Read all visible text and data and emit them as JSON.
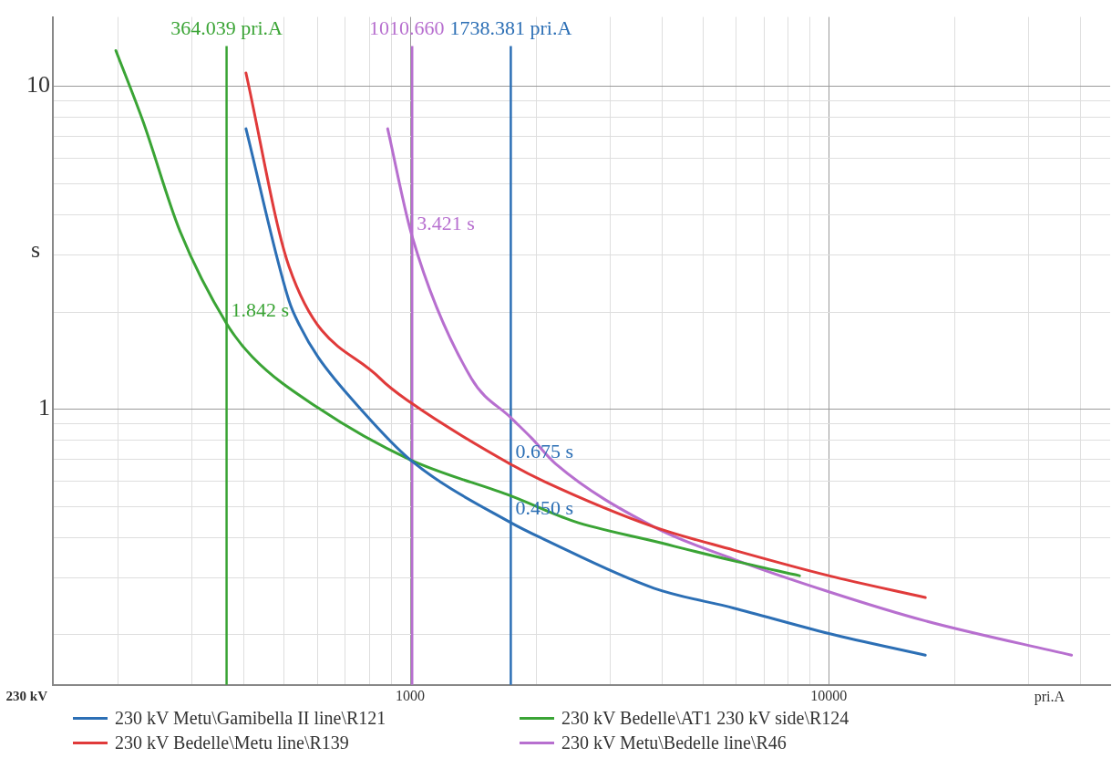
{
  "chart_data": {
    "type": "line",
    "xlabel": "pri.A",
    "ylabel": "s",
    "log": "xy",
    "grid": true,
    "legend": "bottom",
    "xlim": [
      140,
      47000
    ],
    "ylim": [
      0.14,
      16.4
    ],
    "xticks": [
      {
        "value": 200,
        "label": null
      },
      {
        "value": 300,
        "label": null
      },
      {
        "value": 400,
        "label": null
      },
      {
        "value": 500,
        "label": null
      },
      {
        "value": 600,
        "label": null
      },
      {
        "value": 700,
        "label": null
      },
      {
        "value": 800,
        "label": null
      },
      {
        "value": 900,
        "label": null
      },
      1000,
      {
        "value": 2000,
        "label": null
      },
      {
        "value": 3000,
        "label": null
      },
      {
        "value": 4000,
        "label": null
      },
      {
        "value": 5000,
        "label": null
      },
      {
        "value": 6000,
        "label": null
      },
      {
        "value": 7000,
        "label": null
      },
      {
        "value": 8000,
        "label": null
      },
      {
        "value": 9000,
        "label": null
      },
      10000,
      {
        "value": 20000,
        "label": null
      },
      {
        "value": 30000,
        "label": null
      },
      {
        "value": 40000,
        "label": null
      }
    ],
    "yticks": [
      {
        "value": 0.2,
        "label": null
      },
      {
        "value": 0.3,
        "label": null
      },
      {
        "value": 0.4,
        "label": null
      },
      {
        "value": 0.5,
        "label": null
      },
      {
        "value": 0.6,
        "label": null
      },
      {
        "value": 0.7,
        "label": null
      },
      {
        "value": 0.8,
        "label": null
      },
      {
        "value": 0.9,
        "label": null
      },
      1,
      {
        "value": 2,
        "label": null
      },
      {
        "value": 3,
        "label": null
      },
      {
        "value": 4,
        "label": null
      },
      {
        "value": 5,
        "label": null
      },
      {
        "value": 6,
        "label": null
      },
      {
        "value": 7,
        "label": null
      },
      {
        "value": 8,
        "label": null
      },
      {
        "value": 9,
        "label": null
      },
      10
    ],
    "series": [
      {
        "name": "230 kV Metu\\Gamibella II line\\R121",
        "color": "#2c6fb5",
        "x": [
          405,
          513,
          545,
          602,
          767,
          1000,
          1745,
          2090,
          3820,
          5930,
          10000,
          17000
        ],
        "values": [
          7.39,
          2.17,
          1.81,
          1.45,
          0.99,
          0.697,
          0.444,
          0.395,
          0.279,
          0.242,
          0.202,
          0.173
        ]
      },
      {
        "name": "230 kV Bedelle\\AT1 230 kV side\\R124",
        "color": "#3aa435",
        "x": [
          198,
          230,
          281,
          364.039,
          420,
          602,
          1000,
          1745,
          2455,
          3820,
          5930,
          8510
        ],
        "values": [
          12.9,
          7.78,
          3.59,
          1.842,
          1.45,
          1.01,
          0.697,
          0.538,
          0.45,
          0.39,
          0.339,
          0.305
        ]
      },
      {
        "name": "230 kV Bedelle\\Metu line\\R139",
        "color": "#e03a3a",
        "x": [
          405,
          513,
          847,
          1000,
          1738.381,
          2090,
          3820,
          5930,
          10000,
          17000
        ],
        "values": [
          11.0,
          2.77,
          1.245,
          1.05,
          0.675,
          0.597,
          0.432,
          0.366,
          0.305,
          0.261
        ]
      },
      {
        "name": "230 kV Metu\\Bedelle line\\R46",
        "color": "#b76fcf",
        "x": [
          883,
          1010.66,
          1400,
          1745,
          1950,
          2220,
          3820,
          5930,
          10000,
          17000,
          38000
        ],
        "values": [
          7.39,
          3.421,
          1.245,
          0.937,
          0.813,
          0.679,
          0.432,
          0.343,
          0.272,
          0.221,
          0.173
        ]
      }
    ],
    "ref_lines": [
      {
        "axis": "x",
        "value": 364.039,
        "label": "364.039 pri.A",
        "color": "#3aa435"
      },
      {
        "axis": "x",
        "value": 1010.66,
        "label": "1010.660",
        "color": "#b76fcf"
      },
      {
        "axis": "x",
        "value": 1738.381,
        "label": "1738.381 pri.A",
        "color": "#2c6fb5"
      }
    ],
    "annotations": [
      "230 kV",
      {
        "text": "1.842 s",
        "x": 364.039,
        "y": 1.842
      },
      {
        "text": "3.421 s",
        "x": 1010.66,
        "y": 3.421
      },
      {
        "text": "0.675 s",
        "x": 1738.381,
        "y": 0.675
      },
      {
        "text": "0.450 s",
        "x": 1738.381,
        "y": 0.45
      }
    ]
  }
}
